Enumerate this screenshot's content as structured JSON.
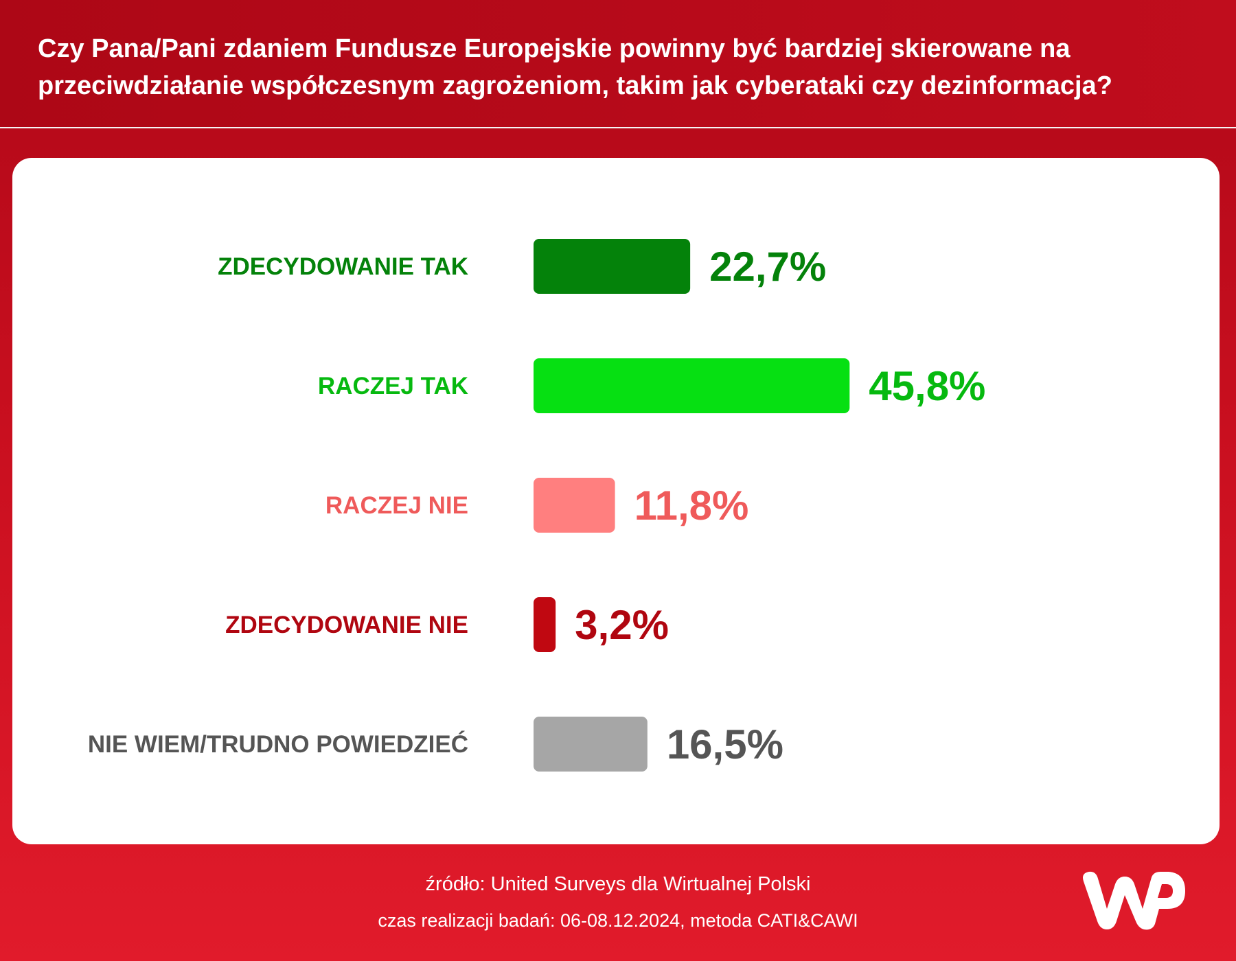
{
  "title": "Czy Pana/Pani zdaniem Fundusze Europejskie powinny być bardziej skierowane na przeciwdziałanie współczesnym zagrożeniom, takim jak cyberataki czy dezinformacja?",
  "footer": {
    "source": "źródło: United Surveys dla Wirtualnej Polski",
    "time": "czas realizacji badań: 06-08.12.2024, metoda CATI&CAWI"
  },
  "logo": {
    "text": "WP"
  },
  "chart_data": {
    "type": "bar",
    "orientation": "horizontal",
    "categories": [
      "ZDECYDOWANIE TAK",
      "RACZEJ TAK",
      "RACZEJ NIE",
      "ZDECYDOWANIE NIE",
      "NIE WIEM/TRUDNO POWIEDZIEĆ"
    ],
    "values": [
      22.7,
      45.8,
      11.8,
      3.2,
      16.5
    ],
    "value_labels": [
      "22,7%",
      "45,8%",
      "11,8%",
      "3,2%",
      "16,5%"
    ],
    "bar_colors": [
      "#04820a",
      "#06e012",
      "#ff7f7f",
      "#c00811",
      "#a6a6a6"
    ],
    "label_colors": [
      "#04820a",
      "#06b90f",
      "#ef5a5a",
      "#b00610",
      "#555555"
    ],
    "unit": "%",
    "grid": false,
    "legend": "none"
  }
}
